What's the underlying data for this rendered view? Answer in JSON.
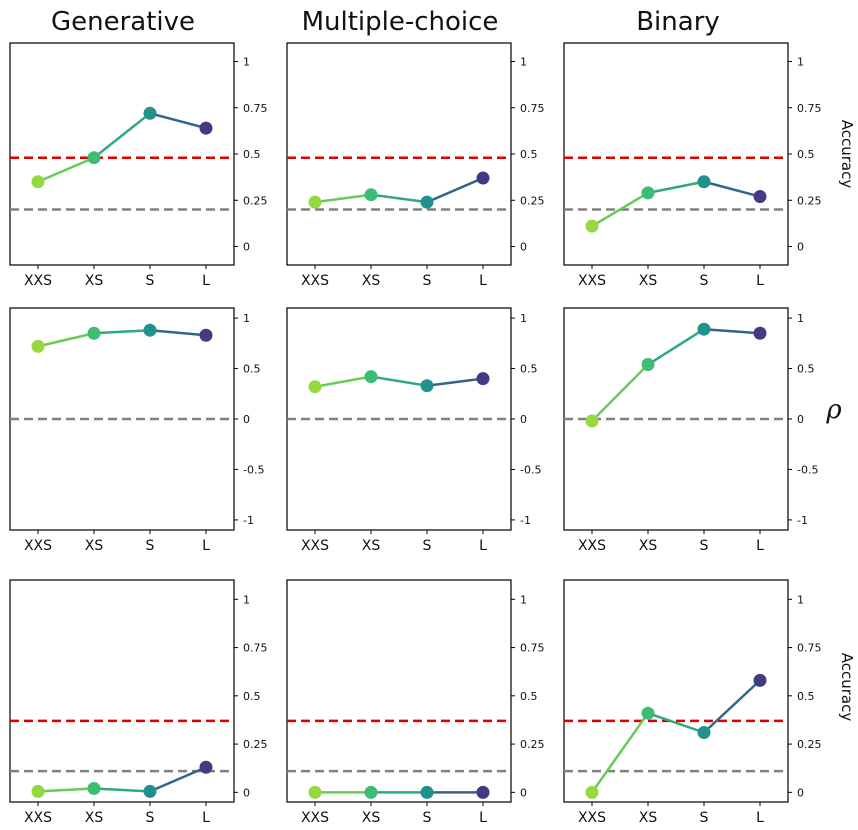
{
  "chart_data": {
    "type": "line",
    "column_titles": [
      "Generative",
      "Multiple-choice",
      "Binary"
    ],
    "row_labels": [
      "Accuracy",
      "ρ",
      "Accuracy"
    ],
    "categories": [
      "XXS",
      "XS",
      "S",
      "L"
    ],
    "point_colors": [
      "#95d840",
      "#3dbc74",
      "#21918c",
      "#443983"
    ],
    "reference_colors": {
      "red": "#dd0000",
      "gray": "#808080"
    },
    "rows": [
      {
        "ylim": [
          -0.1,
          1.1
        ],
        "yticks": [
          0,
          0.25,
          0.5,
          0.75,
          1
        ],
        "ytick_labels": [
          "0",
          "0.25",
          "0.5",
          "0.75",
          "1"
        ],
        "red_line": 0.48,
        "gray_line": 0.2,
        "panels": [
          {
            "values": [
              0.35,
              0.48,
              0.72,
              0.64
            ]
          },
          {
            "values": [
              0.24,
              0.28,
              0.24,
              0.37
            ]
          },
          {
            "values": [
              0.11,
              0.29,
              0.35,
              0.27
            ]
          }
        ]
      },
      {
        "ylim": [
          -1.1,
          1.1
        ],
        "yticks": [
          -1,
          -0.5,
          0,
          0.5,
          1
        ],
        "ytick_labels": [
          "-1",
          "-0.5",
          "0",
          "0.5",
          "1"
        ],
        "red_line": null,
        "gray_line": 0,
        "panels": [
          {
            "values": [
              0.72,
              0.85,
              0.88,
              0.83
            ]
          },
          {
            "values": [
              0.32,
              0.42,
              0.33,
              0.4
            ]
          },
          {
            "values": [
              -0.02,
              0.54,
              0.89,
              0.85
            ]
          }
        ]
      },
      {
        "ylim": [
          -0.05,
          1.1
        ],
        "yticks": [
          0,
          0.25,
          0.5,
          0.75,
          1
        ],
        "ytick_labels": [
          "0",
          "0.25",
          "0.5",
          "0.75",
          "1"
        ],
        "red_line": 0.37,
        "gray_line": 0.11,
        "panels": [
          {
            "values": [
              0.005,
              0.02,
              0.005,
              0.13
            ]
          },
          {
            "values": [
              0.0,
              0.0,
              0.0,
              0.0
            ]
          },
          {
            "values": [
              0.0,
              0.41,
              0.31,
              0.58
            ]
          }
        ]
      }
    ],
    "grid": false
  }
}
